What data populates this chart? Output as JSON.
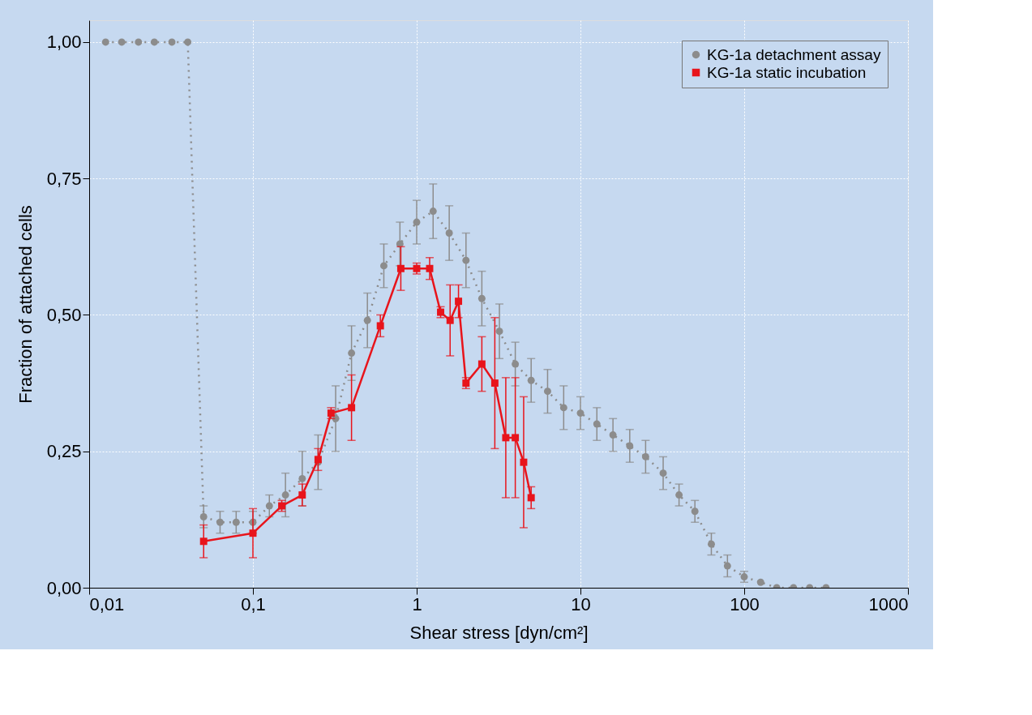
{
  "chart_data": {
    "type": "line",
    "xlabel": "Shear stress [dyn/cm²]",
    "ylabel": "Fraction of attached cells",
    "log": "x",
    "grid": true,
    "legend": "top right",
    "xlim": [
      0.01,
      1000
    ],
    "ylim": [
      0,
      1.04
    ],
    "xticks": [
      {
        "value": 0.01,
        "label": "0,01"
      },
      {
        "value": 0.1,
        "label": "0,1"
      },
      1,
      10,
      100,
      1000
    ],
    "yticks": [
      {
        "value": 0,
        "label": "0,00"
      },
      {
        "value": 0.25,
        "label": "0,25"
      },
      {
        "value": 0.5,
        "label": "0,50"
      },
      {
        "value": 0.75,
        "label": "0,75"
      },
      {
        "value": 1,
        "label": "1,00"
      }
    ],
    "series": [
      {
        "name": "KG-1a detachment assay",
        "color": "#8c8c8c",
        "marker": "circle",
        "line_style": "dotted",
        "x": [
          0.0126,
          0.0158,
          0.02,
          0.025,
          0.032,
          0.04,
          0.05,
          0.063,
          0.079,
          0.1,
          0.126,
          0.158,
          0.2,
          0.25,
          0.32,
          0.4,
          0.5,
          0.63,
          0.79,
          1.0,
          1.26,
          1.58,
          2.0,
          2.5,
          3.2,
          4.0,
          5.0,
          6.3,
          7.9,
          10,
          12.6,
          15.8,
          20,
          25,
          32,
          40,
          50,
          63,
          79,
          100,
          126,
          158,
          200,
          251,
          316
        ],
        "values": [
          1,
          1,
          1,
          1,
          1,
          1,
          0.13,
          0.12,
          0.12,
          0.12,
          0.15,
          0.17,
          0.2,
          0.23,
          0.31,
          0.43,
          0.49,
          0.59,
          0.63,
          0.67,
          0.69,
          0.65,
          0.6,
          0.53,
          0.47,
          0.41,
          0.38,
          0.36,
          0.33,
          0.32,
          0.3,
          0.28,
          0.26,
          0.24,
          0.21,
          0.17,
          0.14,
          0.08,
          0.04,
          0.02,
          0.01,
          0,
          0,
          0,
          0
        ],
        "errors": [
          null,
          null,
          null,
          null,
          null,
          null,
          0.02,
          0.02,
          0.02,
          0.02,
          0.02,
          0.04,
          0.05,
          0.05,
          0.06,
          0.05,
          0.05,
          0.04,
          0.04,
          0.04,
          0.05,
          0.05,
          0.05,
          0.05,
          0.05,
          0.04,
          0.04,
          0.04,
          0.04,
          0.03,
          0.03,
          0.03,
          0.03,
          0.03,
          0.03,
          0.02,
          0.02,
          0.02,
          0.02,
          0.01,
          null,
          null,
          null,
          null,
          null
        ]
      },
      {
        "name": "KG-1a static incubation",
        "color": "#e8141b",
        "marker": "square",
        "line_style": "solid",
        "x": [
          0.05,
          0.1,
          0.15,
          0.2,
          0.25,
          0.3,
          0.4,
          0.6,
          0.8,
          1.0,
          1.2,
          1.4,
          1.6,
          1.8,
          2.0,
          2.5,
          3.0,
          3.5,
          4.0,
          4.5,
          5.0
        ],
        "values": [
          0.085,
          0.1,
          0.15,
          0.17,
          0.235,
          0.32,
          0.33,
          0.48,
          0.585,
          0.585,
          0.585,
          0.505,
          0.49,
          0.525,
          0.375,
          0.41,
          0.375,
          0.275,
          0.275,
          0.23,
          0.165
        ],
        "errors": [
          0.03,
          0.045,
          0.01,
          0.02,
          0.02,
          0.01,
          0.06,
          0.02,
          0.04,
          0.01,
          0.02,
          0.01,
          0.065,
          0.03,
          0.01,
          0.05,
          0.12,
          0.11,
          0.11,
          0.12,
          0.02
        ]
      }
    ]
  }
}
